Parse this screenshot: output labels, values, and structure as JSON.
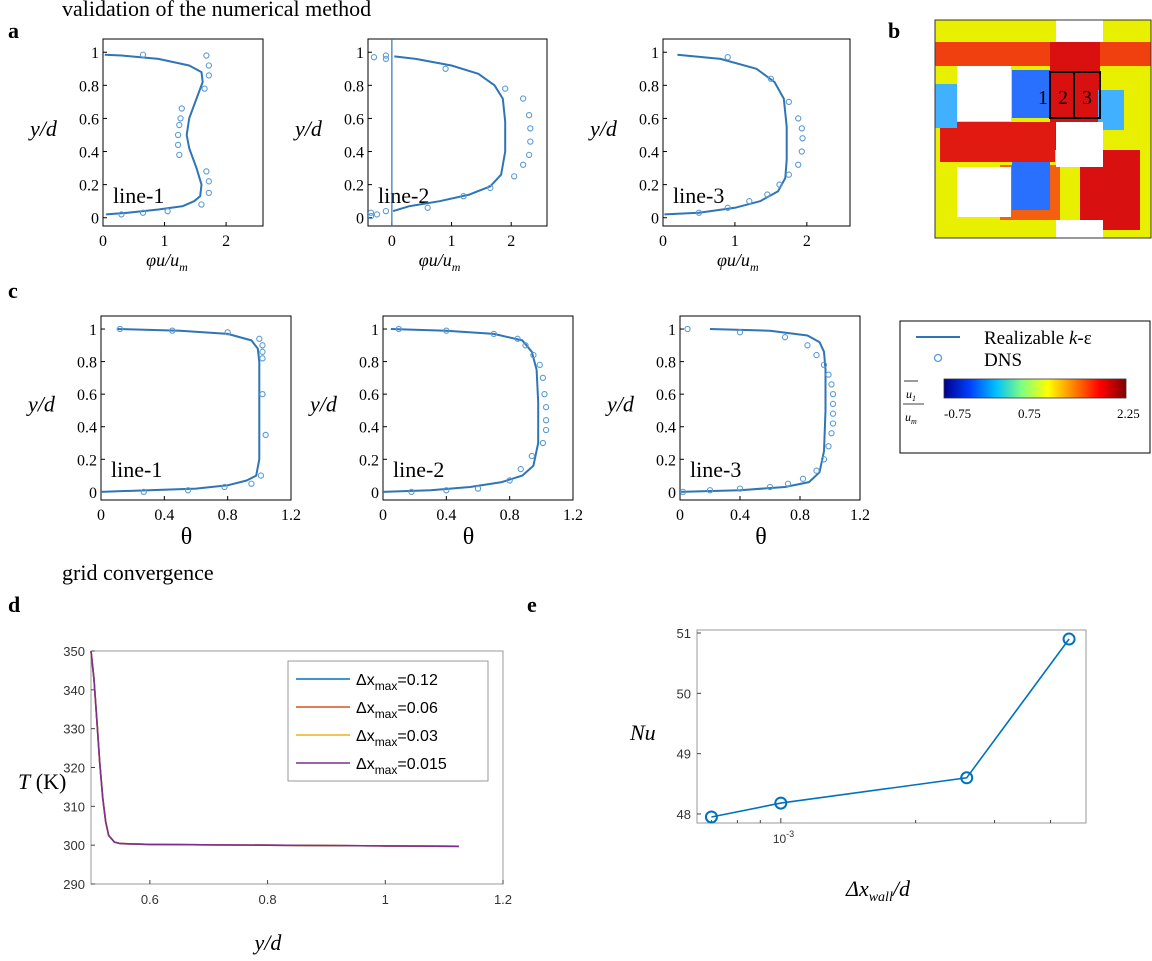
{
  "headings": {
    "validation": "validation of the numerical method",
    "grid": "grid convergence"
  },
  "panel_letters": {
    "a": "a",
    "b": "b",
    "c": "c",
    "d": "d",
    "e": "e"
  },
  "colors": {
    "model_line": "#2e75b6",
    "dns_marker": "#5b9bd5",
    "frame": "#000000"
  },
  "velocity_axes": {
    "ylabel": "y/d",
    "xlabel": "φu/u",
    "xlabel_sub": "m"
  },
  "theta_axes": {
    "ylabel": "y/d",
    "xlabel": "θ"
  },
  "legend_ab": {
    "model": "Realizable ",
    "model_k": "k",
    "model_eps": "-ε",
    "dns": "DNS",
    "colorbar_num": "u",
    "colorbar_num_sub": "1",
    "colorbar_den": "u",
    "colorbar_den_sub": "m",
    "colorbar_ticks": [
      "-0.75",
      "0.75",
      "2.25"
    ],
    "colormap": [
      "#00008f",
      "#0040ff",
      "#00c0ff",
      "#80ff80",
      "#ffff00",
      "#ff8000",
      "#ff0000",
      "#800000"
    ]
  },
  "panel_b": {
    "line_labels": [
      "1",
      "2",
      "3"
    ]
  },
  "chart_data": [
    {
      "id": "a1",
      "type": "line",
      "annotation": "line-1",
      "xlabel": "φu/u_m",
      "ylabel": "y/d",
      "xlim": [
        0,
        2.6
      ],
      "ylim": [
        -0.05,
        1.08
      ],
      "xticks": [
        "0",
        "1",
        "2"
      ],
      "yticks": [
        "0",
        "0.2",
        "0.4",
        "0.6",
        "0.8",
        "1"
      ],
      "series": [
        {
          "style": "line",
          "x": [
            0.05,
            0.4,
            0.9,
            1.3,
            1.48,
            1.58,
            1.6,
            1.52,
            1.4,
            1.36,
            1.4,
            1.52,
            1.62,
            1.6,
            1.4,
            0.9,
            0.3,
            0.03
          ],
          "y": [
            0.02,
            0.03,
            0.05,
            0.07,
            0.1,
            0.13,
            0.2,
            0.3,
            0.42,
            0.5,
            0.6,
            0.72,
            0.82,
            0.88,
            0.92,
            0.96,
            0.98,
            0.985
          ]
        },
        {
          "style": "marker",
          "x": [
            0.3,
            0.65,
            1.05,
            1.6,
            1.72,
            1.72,
            1.68,
            1.24,
            1.22,
            1.22,
            1.24,
            1.26,
            1.28,
            1.65,
            1.72,
            1.72,
            1.68,
            0.65
          ],
          "y": [
            0.02,
            0.03,
            0.04,
            0.08,
            0.15,
            0.22,
            0.28,
            0.38,
            0.44,
            0.5,
            0.56,
            0.6,
            0.66,
            0.78,
            0.86,
            0.92,
            0.98,
            0.985
          ]
        }
      ]
    },
    {
      "id": "a2",
      "type": "line",
      "annotation": "line-2",
      "xlabel": "φu/u_m",
      "ylabel": "y/d",
      "xlim": [
        -0.4,
        2.6
      ],
      "ylim": [
        -0.05,
        1.08
      ],
      "xticks": [
        "0",
        "1",
        "2"
      ],
      "yticks": [
        "0",
        "0.2",
        "0.4",
        "0.6",
        "0.8",
        "1"
      ],
      "series": [
        {
          "style": "line",
          "x": [
            0.02,
            0.3,
            0.8,
            1.3,
            1.65,
            1.83,
            1.9,
            1.9,
            1.86,
            1.72,
            1.45,
            1.0,
            0.4,
            0.04
          ],
          "y": [
            0.04,
            0.07,
            0.1,
            0.14,
            0.19,
            0.26,
            0.4,
            0.58,
            0.72,
            0.8,
            0.87,
            0.92,
            0.96,
            0.975
          ]
        },
        {
          "style": "marker",
          "x": [
            -0.25,
            -0.1,
            0.6,
            1.2,
            1.65,
            2.05,
            2.2,
            2.3,
            2.32,
            2.32,
            2.3,
            2.2,
            1.9,
            0.9,
            -0.1,
            -0.3,
            -0.35,
            -0.35,
            -0.1
          ],
          "y": [
            0.02,
            0.04,
            0.06,
            0.13,
            0.18,
            0.25,
            0.32,
            0.38,
            0.46,
            0.54,
            0.62,
            0.72,
            0.78,
            0.9,
            0.96,
            0.97,
            0.01,
            0.03,
            0.98
          ]
        }
      ]
    },
    {
      "id": "a3",
      "type": "line",
      "annotation": "line-3",
      "xlabel": "φu/u_m",
      "ylabel": "y/d",
      "xlim": [
        0,
        2.6
      ],
      "ylim": [
        -0.05,
        1.08
      ],
      "xticks": [
        "0",
        "1",
        "2"
      ],
      "yticks": [
        "0",
        "0.2",
        "0.4",
        "0.6",
        "0.8",
        "1"
      ],
      "series": [
        {
          "style": "line",
          "x": [
            0.02,
            0.5,
            1.0,
            1.35,
            1.6,
            1.7,
            1.72,
            1.72,
            1.68,
            1.55,
            1.3,
            0.8,
            0.2
          ],
          "y": [
            0.02,
            0.03,
            0.06,
            0.1,
            0.16,
            0.24,
            0.35,
            0.55,
            0.72,
            0.82,
            0.9,
            0.96,
            0.985
          ]
        },
        {
          "style": "marker",
          "x": [
            0.5,
            0.9,
            1.2,
            1.45,
            1.62,
            1.75,
            1.88,
            1.93,
            1.94,
            1.93,
            1.88,
            1.75,
            1.5,
            0.9
          ],
          "y": [
            0.03,
            0.06,
            0.1,
            0.14,
            0.2,
            0.26,
            0.32,
            0.4,
            0.48,
            0.54,
            0.6,
            0.7,
            0.84,
            0.97
          ]
        }
      ]
    },
    {
      "id": "c1",
      "type": "line",
      "annotation": "line-1",
      "xlabel": "θ",
      "ylabel": "y/d",
      "xlim": [
        0,
        1.2
      ],
      "ylim": [
        -0.05,
        1.08
      ],
      "xticks": [
        "0",
        "0.4",
        "0.8",
        "1.2"
      ],
      "yticks": [
        "0",
        "0.2",
        "0.4",
        "0.6",
        "0.8",
        "1"
      ],
      "series": [
        {
          "style": "line",
          "x": [
            0.0,
            0.3,
            0.6,
            0.8,
            0.92,
            0.98,
            1.0,
            1.0,
            1.0,
            0.99,
            0.95,
            0.8,
            0.5,
            0.1
          ],
          "y": [
            0.0,
            0.01,
            0.02,
            0.04,
            0.07,
            0.1,
            0.2,
            0.5,
            0.8,
            0.88,
            0.93,
            0.97,
            0.99,
            1.0
          ]
        },
        {
          "style": "marker",
          "x": [
            0.27,
            0.55,
            0.78,
            0.95,
            1.01,
            1.04,
            1.02,
            1.02,
            1.02,
            1.02,
            1.0,
            0.8,
            0.45,
            0.12
          ],
          "y": [
            0.0,
            0.01,
            0.03,
            0.05,
            0.1,
            0.35,
            0.6,
            0.82,
            0.86,
            0.9,
            0.94,
            0.98,
            0.99,
            1.0
          ]
        }
      ]
    },
    {
      "id": "c2",
      "type": "line",
      "annotation": "line-2",
      "xlabel": "θ",
      "ylabel": "y/d",
      "xlim": [
        0,
        1.2
      ],
      "ylim": [
        -0.05,
        1.08
      ],
      "xticks": [
        "0",
        "0.4",
        "0.8",
        "1.2"
      ],
      "yticks": [
        "0",
        "0.2",
        "0.4",
        "0.6",
        "0.8",
        "1"
      ],
      "series": [
        {
          "style": "line",
          "x": [
            0.0,
            0.3,
            0.55,
            0.75,
            0.88,
            0.95,
            0.98,
            0.98,
            0.97,
            0.94,
            0.88,
            0.7,
            0.4,
            0.05
          ],
          "y": [
            0.0,
            0.01,
            0.03,
            0.06,
            0.1,
            0.16,
            0.3,
            0.55,
            0.75,
            0.86,
            0.93,
            0.97,
            0.99,
            1.0
          ]
        },
        {
          "style": "marker",
          "x": [
            0.18,
            0.4,
            0.6,
            0.8,
            0.87,
            0.94,
            1.01,
            1.03,
            1.03,
            1.03,
            1.02,
            1.01,
            0.99,
            0.95,
            0.9,
            0.85,
            0.7,
            0.4,
            0.1
          ],
          "y": [
            0.0,
            0.01,
            0.02,
            0.07,
            0.14,
            0.22,
            0.3,
            0.38,
            0.44,
            0.52,
            0.6,
            0.7,
            0.78,
            0.84,
            0.9,
            0.94,
            0.97,
            0.99,
            1.0
          ]
        }
      ]
    },
    {
      "id": "c3",
      "type": "line",
      "annotation": "line-3",
      "xlabel": "θ",
      "ylabel": "y/d",
      "xlim": [
        0,
        1.2
      ],
      "ylim": [
        -0.05,
        1.08
      ],
      "xticks": [
        "0",
        "0.4",
        "0.8",
        "1.2"
      ],
      "yticks": [
        "0",
        "0.2",
        "0.4",
        "0.6",
        "0.8",
        "1"
      ],
      "series": [
        {
          "style": "line",
          "x": [
            0.0,
            0.4,
            0.7,
            0.86,
            0.93,
            0.96,
            0.97,
            0.97,
            0.96,
            0.93,
            0.85,
            0.6,
            0.2
          ],
          "y": [
            0.0,
            0.01,
            0.03,
            0.06,
            0.12,
            0.25,
            0.5,
            0.75,
            0.86,
            0.92,
            0.96,
            0.99,
            1.0
          ]
        },
        {
          "style": "marker",
          "x": [
            0.02,
            0.2,
            0.4,
            0.6,
            0.72,
            0.82,
            0.91,
            0.96,
            0.99,
            1.01,
            1.02,
            1.02,
            1.02,
            1.02,
            1.01,
            0.99,
            0.96,
            0.91,
            0.85,
            0.7,
            0.4,
            0.05
          ],
          "y": [
            0.0,
            0.01,
            0.02,
            0.03,
            0.05,
            0.08,
            0.13,
            0.2,
            0.28,
            0.36,
            0.42,
            0.48,
            0.54,
            0.6,
            0.66,
            0.72,
            0.78,
            0.84,
            0.9,
            0.95,
            0.98,
            1.0
          ]
        }
      ]
    },
    {
      "id": "d",
      "type": "line",
      "xlabel": "y/d",
      "ylabel": "T (K)",
      "xlim": [
        0.5,
        1.2
      ],
      "ylim": [
        290,
        350
      ],
      "xticks": [
        "0.6",
        "0.8",
        "1",
        "1.2"
      ],
      "yticks": [
        "290",
        "300",
        "310",
        "320",
        "330",
        "340",
        "350"
      ],
      "legend_position": "top-right",
      "series": [
        {
          "label": "Δx_max=0.12",
          "label_base": "Δx",
          "label_sub": "max",
          "label_val": "=0.12",
          "color": "#0072bd",
          "x": [
            0.5,
            0.505,
            0.51,
            0.515,
            0.52,
            0.525,
            0.53,
            0.54,
            0.55,
            0.6,
            0.8,
            1.0,
            1.125
          ],
          "y": [
            350,
            343,
            332,
            321,
            312,
            306,
            302.5,
            300.8,
            300.4,
            300.2,
            300.0,
            299.8,
            299.7
          ]
        },
        {
          "label": "Δx_max=0.06",
          "label_base": "Δx",
          "label_sub": "max",
          "label_val": "=0.06",
          "color": "#d95319",
          "x": [
            0.5,
            0.505,
            0.51,
            0.515,
            0.52,
            0.525,
            0.53,
            0.54,
            0.55,
            0.6,
            0.8,
            1.0,
            1.125
          ],
          "y": [
            350,
            343,
            332,
            321,
            312,
            306,
            302.5,
            300.8,
            300.4,
            300.2,
            300.0,
            299.8,
            299.7
          ]
        },
        {
          "label": "Δx_max=0.03",
          "label_base": "Δx",
          "label_sub": "max",
          "label_val": "=0.03",
          "color": "#edb120",
          "x": [
            0.5,
            0.505,
            0.51,
            0.515,
            0.52,
            0.525,
            0.53,
            0.54,
            0.55,
            0.6,
            0.8,
            1.0,
            1.125
          ],
          "y": [
            350,
            343,
            332,
            321,
            312,
            306,
            302.5,
            300.8,
            300.4,
            300.2,
            300.0,
            299.8,
            299.7
          ]
        },
        {
          "label": "Δx_max=0.015",
          "label_base": "Δx",
          "label_sub": "max",
          "label_val": "=0.015",
          "color": "#7e2f8e",
          "x": [
            0.5,
            0.505,
            0.51,
            0.515,
            0.52,
            0.525,
            0.53,
            0.54,
            0.55,
            0.6,
            0.8,
            1.0,
            1.125
          ],
          "y": [
            350,
            343,
            332,
            321,
            312,
            306,
            302.5,
            300.8,
            300.4,
            300.2,
            300.0,
            299.8,
            299.7
          ]
        }
      ]
    },
    {
      "id": "e",
      "type": "line",
      "xlabel": "Δx_wall/d",
      "ylabel": "Nu",
      "xscale": "log",
      "xlim": [
        0.00065,
        0.0048
      ],
      "ylim": [
        47.85,
        51.05
      ],
      "yticks": [
        "48",
        "49",
        "50",
        "51"
      ],
      "xticks": [
        "10^-3"
      ],
      "series": [
        {
          "color": "#0072bd",
          "marker": "circle",
          "x": [
            0.0007,
            0.001,
            0.0026,
            0.0044
          ],
          "y": [
            47.95,
            48.18,
            48.6,
            50.9
          ]
        }
      ]
    }
  ]
}
